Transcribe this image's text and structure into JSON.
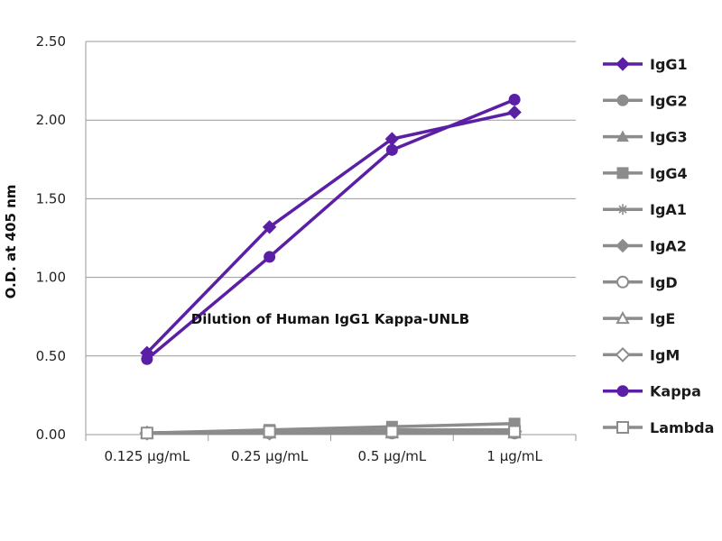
{
  "chart_data": {
    "type": "line",
    "title": "",
    "xlabel": "Dilution of Human IgG1 Kappa-UNLB",
    "ylabel": "O.D. at 405 nm",
    "categories": [
      "0.125 µg/mL",
      "0.25 µg/mL",
      "0.5 µg/mL",
      "1 µg/mL"
    ],
    "ylim": [
      0,
      2.5
    ],
    "yticks": [
      "0.00",
      "0.50",
      "1.00",
      "1.50",
      "2.00",
      "2.50"
    ],
    "grid": "horizontal",
    "legend_position": "right",
    "colors": {
      "highlight": "#5b1fa6",
      "other": "#8c8c8c"
    },
    "series": [
      {
        "name": "IgG1",
        "marker": "diamond",
        "color": "#5b1fa6",
        "values": [
          0.52,
          1.32,
          1.88,
          2.05
        ]
      },
      {
        "name": "IgG2",
        "marker": "circle",
        "color": "#8c8c8c",
        "values": [
          0.01,
          0.02,
          0.02,
          0.02
        ]
      },
      {
        "name": "IgG3",
        "marker": "triangle",
        "color": "#8c8c8c",
        "values": [
          0.01,
          0.02,
          0.03,
          0.03
        ]
      },
      {
        "name": "IgG4",
        "marker": "square",
        "color": "#8c8c8c",
        "values": [
          0.01,
          0.03,
          0.05,
          0.07
        ]
      },
      {
        "name": "IgA1",
        "marker": "star",
        "color": "#8c8c8c",
        "values": [
          0.01,
          0.01,
          0.02,
          0.02
        ]
      },
      {
        "name": "IgA2",
        "marker": "diamond",
        "color": "#8c8c8c",
        "values": [
          0.01,
          0.02,
          0.02,
          0.02
        ]
      },
      {
        "name": "IgD",
        "marker": "circle-open",
        "color": "#8c8c8c",
        "values": [
          0.01,
          0.01,
          0.01,
          0.01
        ]
      },
      {
        "name": "IgE",
        "marker": "triangle-open",
        "color": "#8c8c8c",
        "values": [
          0.01,
          0.01,
          0.01,
          0.01
        ]
      },
      {
        "name": "IgM",
        "marker": "diamond-open",
        "color": "#8c8c8c",
        "values": [
          0.01,
          0.01,
          0.02,
          0.02
        ]
      },
      {
        "name": "Kappa",
        "marker": "circle",
        "color": "#5b1fa6",
        "values": [
          0.48,
          1.13,
          1.81,
          2.13
        ]
      },
      {
        "name": "Lambda",
        "marker": "square-open",
        "color": "#8c8c8c",
        "values": [
          0.01,
          0.02,
          0.02,
          0.02
        ]
      }
    ]
  }
}
